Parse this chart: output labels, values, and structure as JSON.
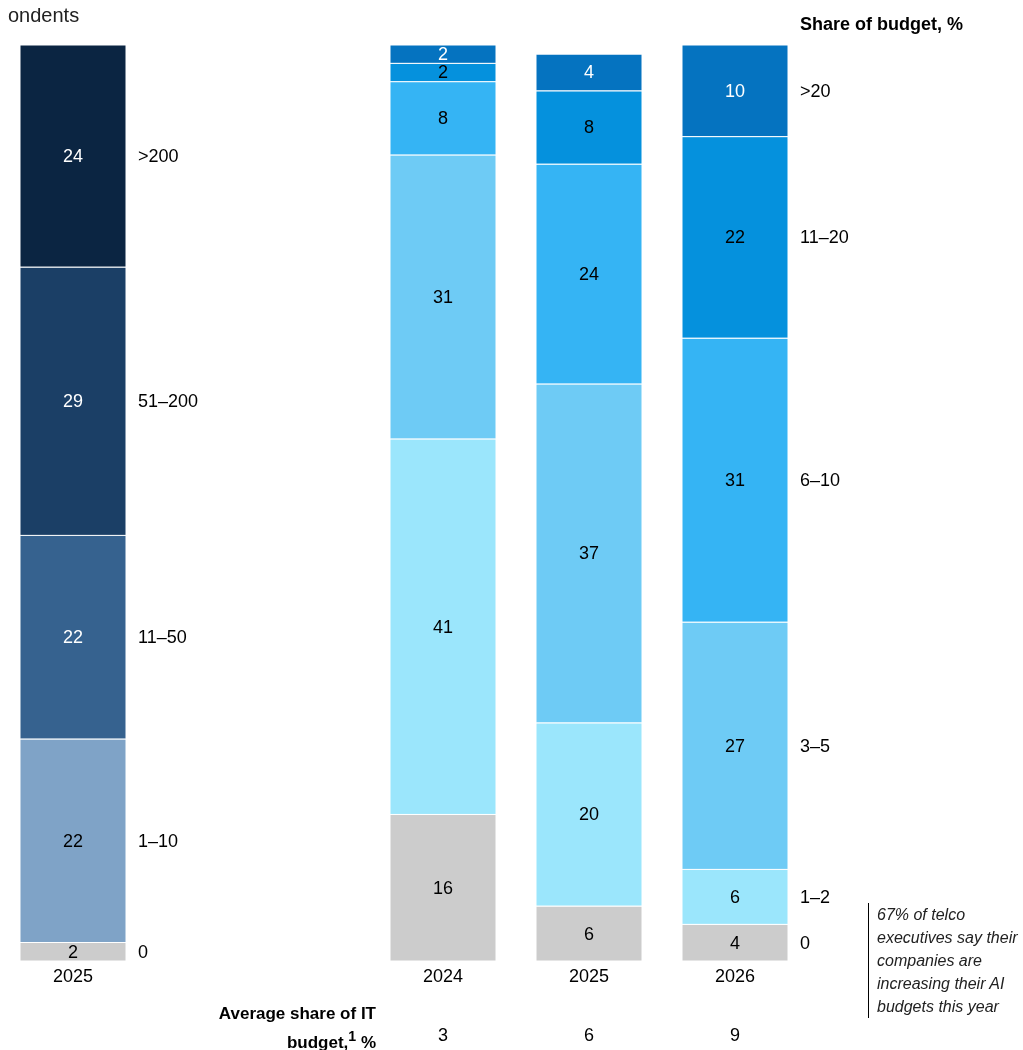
{
  "chart_data": [
    {
      "type": "bar",
      "title": "ondents",
      "stacked": true,
      "data_labels": true,
      "categories": [
        "2025"
      ],
      "series": [
        {
          "name": "0",
          "color": "#cccccc",
          "values": [
            2
          ]
        },
        {
          "name": "1–10",
          "color": "#7fa3c7",
          "values": [
            22
          ]
        },
        {
          "name": "11–50",
          "color": "#36628f",
          "values": [
            22
          ]
        },
        {
          "name": "51–200",
          "color": "#1b3f66",
          "values": [
            29
          ]
        },
        {
          "name": ">200",
          "color": "#0b2542",
          "values": [
            24
          ]
        }
      ]
    },
    {
      "type": "bar",
      "legend_title": "Share of budget, %",
      "stacked": true,
      "data_labels": true,
      "categories": [
        "2024",
        "2025",
        "2026"
      ],
      "series": [
        {
          "name": "0",
          "color": "#cccccc",
          "values": [
            16,
            6,
            4
          ]
        },
        {
          "name": "1–2",
          "color": "#9be6fc",
          "values": [
            41,
            20,
            6
          ]
        },
        {
          "name": "3–5",
          "color": "#6ecbf5",
          "values": [
            31,
            37,
            27
          ]
        },
        {
          "name": "6–10",
          "color": "#35b4f4",
          "values": [
            8,
            24,
            31
          ]
        },
        {
          "name": "11–20",
          "color": "#0591dd",
          "values": [
            2,
            8,
            22
          ]
        },
        {
          "name": ">20",
          "color": "#0573c0",
          "values": [
            2,
            4,
            10
          ]
        }
      ],
      "annotations": [
        "Average share of IT budget,$^{1}$ %",
        "3",
        "6",
        "9",
        "67% of telco executives say their companies are increasing their AI budgets this year"
      ]
    }
  ]
}
